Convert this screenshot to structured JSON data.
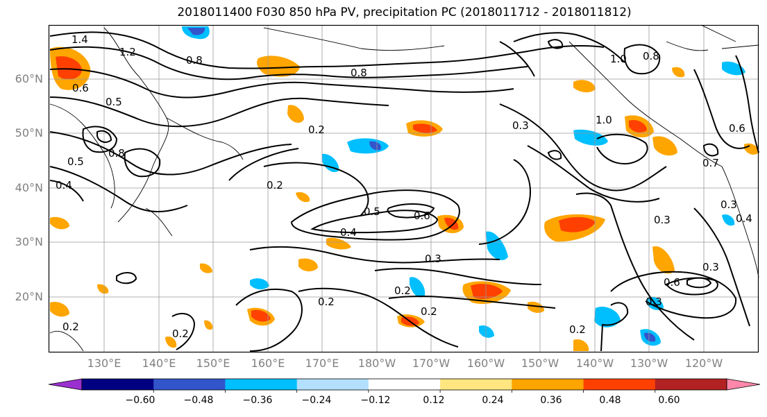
{
  "title": "2018011400 F030 850 hPa PV, precipitation PC (2018011712 - 2018011812)",
  "lat_labels": [
    "60°N",
    "50°N",
    "40°N",
    "30°N",
    "20°N"
  ],
  "lon_labels": [
    "130°E",
    "140°E",
    "150°E",
    "160°E",
    "170°E",
    "180°W",
    "170°W",
    "160°W",
    "150°W",
    "140°W",
    "130°W",
    "120°W"
  ],
  "colorbar": {
    "ticks": [
      "−0.60",
      "−0.48",
      "−0.36",
      "−0.24",
      "−0.12",
      "0.12",
      "0.24",
      "0.36",
      "0.48",
      "0.60"
    ],
    "colors": [
      "#9b30d0",
      "#000080",
      "#3355cc",
      "#00bfff",
      "#b3e0ff",
      "#ffffff",
      "#ffe680",
      "#ffa500",
      "#ff4000",
      "#b22222",
      "#ff88aa"
    ]
  },
  "contour_labels": [
    "1.4",
    "1.2",
    "0.8",
    "0.6",
    "0.5",
    "0.8",
    "0.5",
    "0.4",
    "0.2",
    "0.8",
    "0.2",
    "0.2",
    "0.5",
    "0.6",
    "0.4",
    "0.3",
    "0.2",
    "0.2",
    "0.3",
    "0.3",
    "1.0",
    "0.8",
    "1.0",
    "0.7",
    "0.6",
    "0.3",
    "0.3",
    "0.4",
    "0.6",
    "0.3",
    "0.2",
    "0.2",
    "0.2"
  ]
}
